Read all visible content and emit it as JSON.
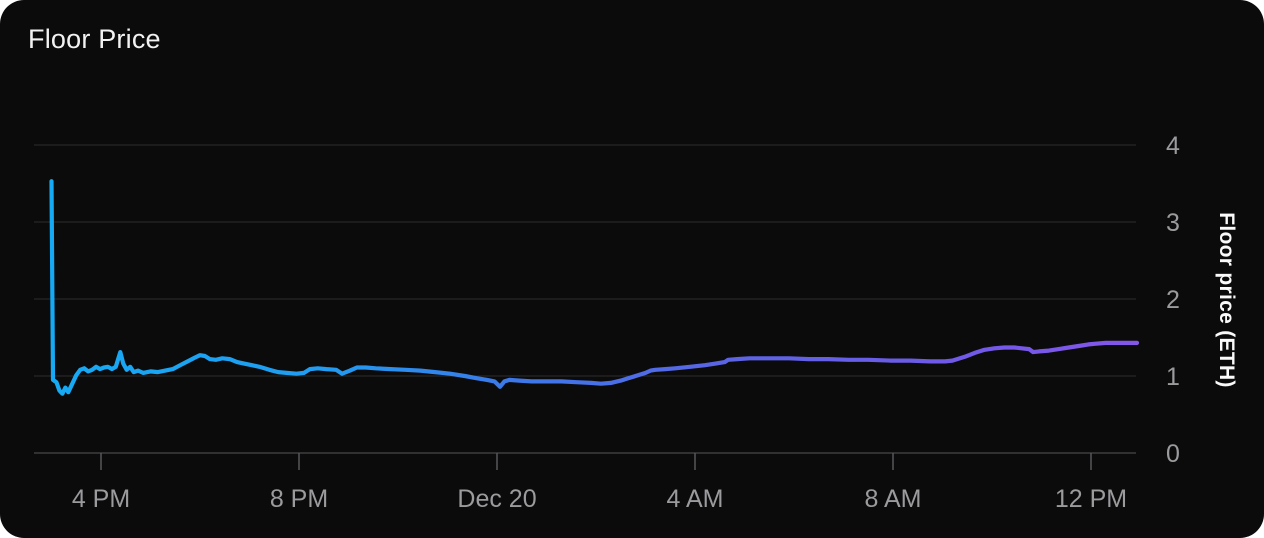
{
  "card": {
    "title": "Floor Price"
  },
  "chart_data": {
    "type": "line",
    "title": "Floor Price",
    "xlabel": "",
    "ylabel": "Floor price (ETH)",
    "x_unit": "hours relative to Dec 20 12:00 AM",
    "xlim": [
      -9.35,
      12.95
    ],
    "ylim": [
      0,
      4
    ],
    "grid": true,
    "legend": false,
    "x_ticks": [
      {
        "h": -8,
        "label": "4 PM"
      },
      {
        "h": -4,
        "label": "8 PM"
      },
      {
        "h": 0,
        "label": "Dec 20"
      },
      {
        "h": 4,
        "label": "4 AM"
      },
      {
        "h": 8,
        "label": "8 AM"
      },
      {
        "h": 12,
        "label": "12 PM"
      }
    ],
    "y_ticks": [
      0,
      1,
      2,
      3,
      4
    ],
    "colors": {
      "background": "#0b0b0c",
      "gridline": "#2c2c2e",
      "axis_line": "#3e3e40",
      "tick_label": "#9b9b9e",
      "title": "#f2f2f2",
      "line_gradient": [
        {
          "offset": 0.0,
          "color": "#16aaf4"
        },
        {
          "offset": 0.25,
          "color": "#219cf0"
        },
        {
          "offset": 0.42,
          "color": "#3b79e9"
        },
        {
          "offset": 0.62,
          "color": "#5b64e4"
        },
        {
          "offset": 0.82,
          "color": "#6e5ae7"
        },
        {
          "offset": 1.0,
          "color": "#8456ea"
        }
      ]
    },
    "series": [
      {
        "name": "Floor price (ETH)",
        "points": [
          [
            -9.0,
            3.53
          ],
          [
            -8.97,
            0.95
          ],
          [
            -8.9,
            0.92
          ],
          [
            -8.84,
            0.81
          ],
          [
            -8.78,
            0.77
          ],
          [
            -8.72,
            0.85
          ],
          [
            -8.66,
            0.79
          ],
          [
            -8.58,
            0.9
          ],
          [
            -8.5,
            1.01
          ],
          [
            -8.42,
            1.08
          ],
          [
            -8.34,
            1.1
          ],
          [
            -8.26,
            1.06
          ],
          [
            -8.18,
            1.08
          ],
          [
            -8.1,
            1.12
          ],
          [
            -8.02,
            1.09
          ],
          [
            -7.94,
            1.11
          ],
          [
            -7.86,
            1.12
          ],
          [
            -7.78,
            1.09
          ],
          [
            -7.7,
            1.12
          ],
          [
            -7.61,
            1.31
          ],
          [
            -7.55,
            1.16
          ],
          [
            -7.48,
            1.08
          ],
          [
            -7.41,
            1.12
          ],
          [
            -7.34,
            1.05
          ],
          [
            -7.25,
            1.07
          ],
          [
            -7.15,
            1.04
          ],
          [
            -7.0,
            1.06
          ],
          [
            -6.85,
            1.05
          ],
          [
            -6.7,
            1.07
          ],
          [
            -6.55,
            1.09
          ],
          [
            -6.4,
            1.14
          ],
          [
            -6.25,
            1.19
          ],
          [
            -6.1,
            1.24
          ],
          [
            -6.0,
            1.27
          ],
          [
            -5.9,
            1.26
          ],
          [
            -5.8,
            1.22
          ],
          [
            -5.68,
            1.21
          ],
          [
            -5.55,
            1.23
          ],
          [
            -5.4,
            1.22
          ],
          [
            -5.25,
            1.18
          ],
          [
            -5.1,
            1.16
          ],
          [
            -4.95,
            1.14
          ],
          [
            -4.8,
            1.12
          ],
          [
            -4.6,
            1.08
          ],
          [
            -4.42,
            1.05
          ],
          [
            -4.25,
            1.04
          ],
          [
            -4.05,
            1.03
          ],
          [
            -3.9,
            1.04
          ],
          [
            -3.78,
            1.09
          ],
          [
            -3.62,
            1.1
          ],
          [
            -3.45,
            1.09
          ],
          [
            -3.25,
            1.08
          ],
          [
            -3.13,
            1.03
          ],
          [
            -2.97,
            1.07
          ],
          [
            -2.83,
            1.11
          ],
          [
            -2.65,
            1.11
          ],
          [
            -2.45,
            1.1
          ],
          [
            -2.15,
            1.09
          ],
          [
            -1.85,
            1.08
          ],
          [
            -1.55,
            1.07
          ],
          [
            -1.25,
            1.05
          ],
          [
            -0.95,
            1.03
          ],
          [
            -0.65,
            1.0
          ],
          [
            -0.4,
            0.97
          ],
          [
            -0.2,
            0.95
          ],
          [
            -0.05,
            0.93
          ],
          [
            0.06,
            0.86
          ],
          [
            0.15,
            0.93
          ],
          [
            0.25,
            0.95
          ],
          [
            0.45,
            0.94
          ],
          [
            0.7,
            0.93
          ],
          [
            1.0,
            0.93
          ],
          [
            1.3,
            0.93
          ],
          [
            1.6,
            0.92
          ],
          [
            1.9,
            0.91
          ],
          [
            2.1,
            0.9
          ],
          [
            2.3,
            0.91
          ],
          [
            2.5,
            0.94
          ],
          [
            2.65,
            0.97
          ],
          [
            2.8,
            1.0
          ],
          [
            3.0,
            1.04
          ],
          [
            3.1,
            1.07
          ],
          [
            3.2,
            1.08
          ],
          [
            3.4,
            1.09
          ],
          [
            3.6,
            1.1
          ],
          [
            3.9,
            1.12
          ],
          [
            4.2,
            1.14
          ],
          [
            4.4,
            1.16
          ],
          [
            4.6,
            1.18
          ],
          [
            4.67,
            1.21
          ],
          [
            4.85,
            1.22
          ],
          [
            5.1,
            1.23
          ],
          [
            5.5,
            1.23
          ],
          [
            5.9,
            1.23
          ],
          [
            6.3,
            1.22
          ],
          [
            6.7,
            1.22
          ],
          [
            7.1,
            1.21
          ],
          [
            7.5,
            1.21
          ],
          [
            7.95,
            1.2
          ],
          [
            8.35,
            1.2
          ],
          [
            8.75,
            1.19
          ],
          [
            9.05,
            1.19
          ],
          [
            9.2,
            1.2
          ],
          [
            9.45,
            1.25
          ],
          [
            9.65,
            1.3
          ],
          [
            9.85,
            1.34
          ],
          [
            10.05,
            1.36
          ],
          [
            10.25,
            1.37
          ],
          [
            10.45,
            1.37
          ],
          [
            10.6,
            1.36
          ],
          [
            10.75,
            1.35
          ],
          [
            10.83,
            1.31
          ],
          [
            10.95,
            1.32
          ],
          [
            11.15,
            1.33
          ],
          [
            11.35,
            1.35
          ],
          [
            11.55,
            1.37
          ],
          [
            11.75,
            1.39
          ],
          [
            11.95,
            1.41
          ],
          [
            12.1,
            1.42
          ],
          [
            12.3,
            1.43
          ],
          [
            12.55,
            1.43
          ],
          [
            12.93,
            1.43
          ]
        ]
      }
    ]
  }
}
